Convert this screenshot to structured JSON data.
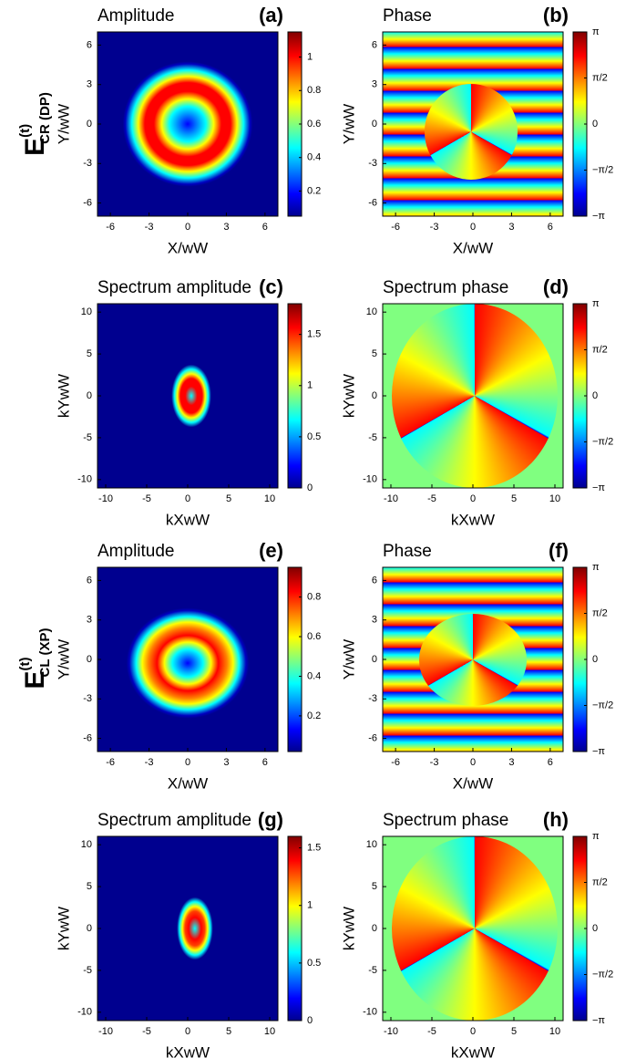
{
  "row_labels": [
    {
      "main": "E",
      "sup": "(t)",
      "sub": "CR (DP)"
    },
    {
      "main": "E",
      "sup": "(t)",
      "sub": "CL (XP)"
    }
  ],
  "chart_data": [
    {
      "type": "heatmap",
      "title": "Amplitude",
      "panel_label": "(a)",
      "x_label": "X/wW",
      "y_label": "Y/wW",
      "xlim": [
        -7,
        7
      ],
      "ylim": [
        -7,
        7
      ],
      "xticks": [
        -6,
        -3,
        0,
        3,
        6
      ],
      "yticks": [
        -6,
        -3,
        0,
        3,
        6
      ],
      "colorbar": {
        "lim": [
          0.05,
          1.15
        ],
        "ticks": [
          0.2,
          0.4,
          0.6,
          0.8,
          1
        ]
      }
    },
    {
      "type": "heatmap",
      "title": "Phase",
      "panel_label": "(b)",
      "x_label": "X/wW",
      "y_label": "Y/wW",
      "xlim": [
        -7,
        7
      ],
      "ylim": [
        -7,
        7
      ],
      "xticks": [
        -6,
        -3,
        0,
        3,
        6
      ],
      "yticks": [
        -6,
        -3,
        0,
        3,
        6
      ],
      "colorbar": {
        "lim": [
          -3.1416,
          3.1416
        ],
        "ticks": [
          {
            "value": 3.1416,
            "label": "π"
          },
          {
            "value": 1.5708,
            "label": "π/2"
          },
          0,
          {
            "value": -1.5708,
            "label": "−π/2"
          },
          {
            "value": -3.1416,
            "label": "−π"
          }
        ]
      }
    },
    {
      "type": "heatmap",
      "title": "Spectrum amplitude",
      "panel_label": "(c)",
      "x_label": "kXwW",
      "y_label": "kYwW",
      "xlim": [
        -11,
        11
      ],
      "ylim": [
        -11,
        11
      ],
      "xticks": [
        -10,
        -5,
        0,
        5,
        10
      ],
      "yticks": [
        -10,
        -5,
        0,
        5,
        10
      ],
      "colorbar": {
        "lim": [
          0,
          1.8
        ],
        "ticks": [
          0,
          0.5,
          1,
          1.5
        ]
      }
    },
    {
      "type": "heatmap",
      "title": "Spectrum phase",
      "panel_label": "(d)",
      "x_label": "kXwW",
      "y_label": "kYwW",
      "xlim": [
        -11,
        11
      ],
      "ylim": [
        -11,
        11
      ],
      "xticks": [
        -10,
        -5,
        0,
        5,
        10
      ],
      "yticks": [
        -10,
        -5,
        0,
        5,
        10
      ],
      "colorbar": {
        "lim": [
          -3.1416,
          3.1416
        ],
        "ticks": [
          {
            "value": 3.1416,
            "label": "π"
          },
          {
            "value": 1.5708,
            "label": "π/2"
          },
          0,
          {
            "value": -1.5708,
            "label": "−π/2"
          },
          {
            "value": -3.1416,
            "label": "−π"
          }
        ]
      }
    },
    {
      "type": "heatmap",
      "title": "Amplitude",
      "panel_label": "(e)",
      "x_label": "X/wW",
      "y_label": "Y/wW",
      "xlim": [
        -7,
        7
      ],
      "ylim": [
        -7,
        7
      ],
      "xticks": [
        -6,
        -3,
        0,
        3,
        6
      ],
      "yticks": [
        -6,
        -3,
        0,
        3,
        6
      ],
      "colorbar": {
        "lim": [
          0.02,
          0.95
        ],
        "ticks": [
          0.2,
          0.4,
          0.6,
          0.8
        ]
      }
    },
    {
      "type": "heatmap",
      "title": "Phase",
      "panel_label": "(f)",
      "x_label": "X/wW",
      "y_label": "Y/wW",
      "xlim": [
        -7,
        7
      ],
      "ylim": [
        -7,
        7
      ],
      "xticks": [
        -6,
        -3,
        0,
        3,
        6
      ],
      "yticks": [
        -6,
        -3,
        0,
        3,
        6
      ],
      "colorbar": {
        "lim": [
          -3.1416,
          3.1416
        ],
        "ticks": [
          {
            "value": 3.1416,
            "label": "π"
          },
          {
            "value": 1.5708,
            "label": "π/2"
          },
          0,
          {
            "value": -1.5708,
            "label": "−π/2"
          },
          {
            "value": -3.1416,
            "label": "−π"
          }
        ]
      }
    },
    {
      "type": "heatmap",
      "title": "Spectrum amplitude",
      "panel_label": "(g)",
      "x_label": "kXwW",
      "y_label": "kYwW",
      "xlim": [
        -11,
        11
      ],
      "ylim": [
        -11,
        11
      ],
      "xticks": [
        -10,
        -5,
        0,
        5,
        10
      ],
      "yticks": [
        -10,
        -5,
        0,
        5,
        10
      ],
      "colorbar": {
        "lim": [
          0,
          1.6
        ],
        "ticks": [
          0,
          0.5,
          1,
          1.5
        ]
      }
    },
    {
      "type": "heatmap",
      "title": "Spectrum phase",
      "panel_label": "(h)",
      "x_label": "kXwW",
      "y_label": "kYwW",
      "xlim": [
        -11,
        11
      ],
      "ylim": [
        -11,
        11
      ],
      "xticks": [
        -10,
        -5,
        0,
        5,
        10
      ],
      "yticks": [
        -10,
        -5,
        0,
        5,
        10
      ],
      "colorbar": {
        "lim": [
          -3.1416,
          3.1416
        ],
        "ticks": [
          {
            "value": 3.1416,
            "label": "π"
          },
          {
            "value": 1.5708,
            "label": "π/2"
          },
          0,
          {
            "value": -1.5708,
            "label": "−π/2"
          },
          {
            "value": -3.1416,
            "label": "−π"
          }
        ]
      }
    }
  ]
}
